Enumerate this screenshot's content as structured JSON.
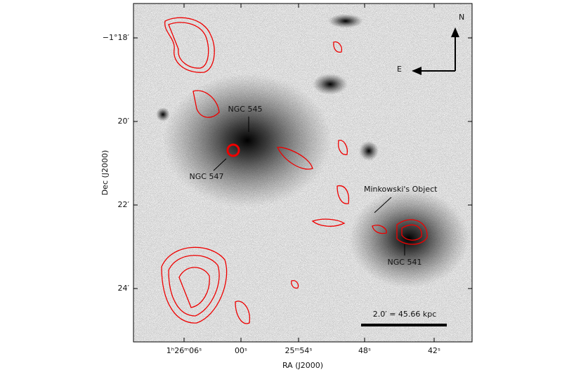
{
  "axes": {
    "x_label": "RA (J2000)",
    "y_label": "Dec (J2000)",
    "x_ticks": [
      "1ʰ26ᵐ06ˢ",
      "00ˢ",
      "25ᵐ54ˢ",
      "48ˢ",
      "42ˢ"
    ],
    "y_ticks": [
      "−1°18′",
      "20′",
      "22′",
      "24′"
    ]
  },
  "annotations": {
    "ngc545": "NGC 545",
    "ngc547": "NGC 547",
    "minkowski": "Minkowski's Object",
    "ngc541": "NGC 541"
  },
  "compass": {
    "north": "N",
    "east": "E"
  },
  "scale_bar": "2.0′ = 45.66 kpc"
}
